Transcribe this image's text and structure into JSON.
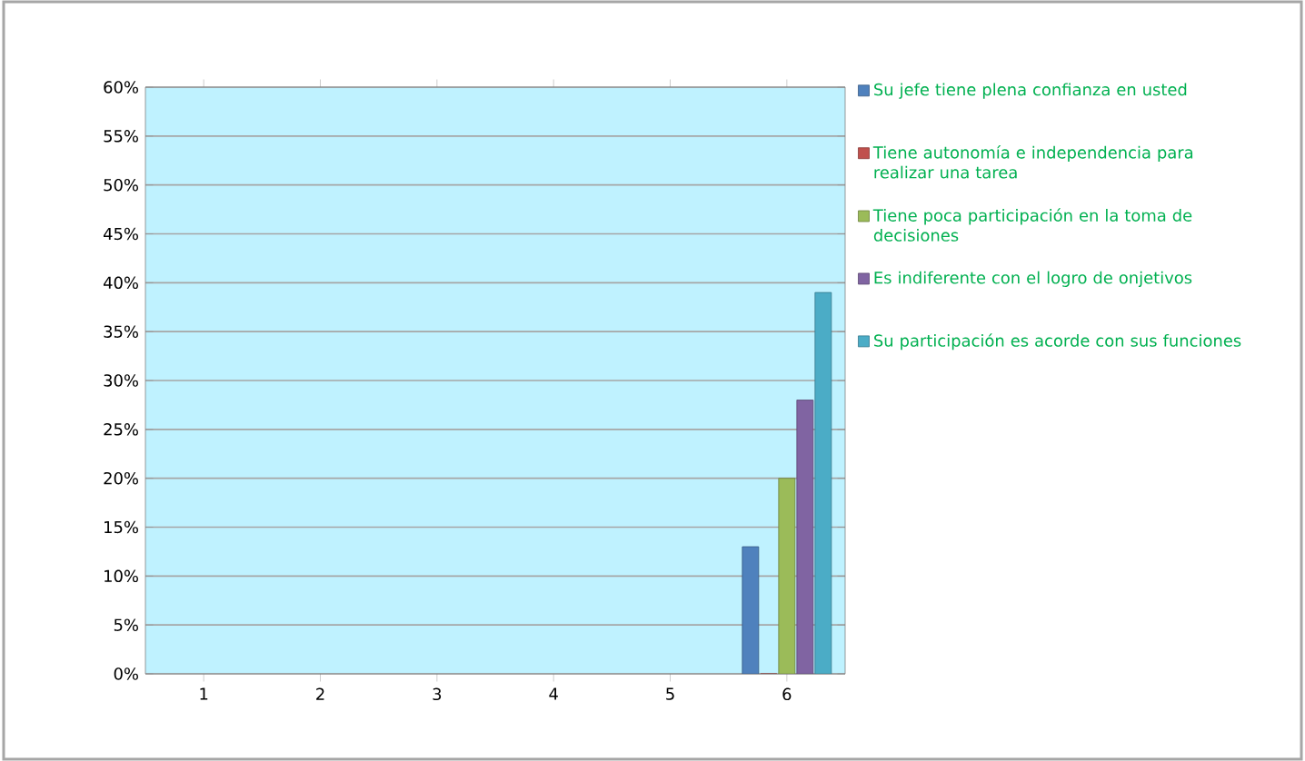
{
  "chart_data": {
    "type": "bar",
    "categories": [
      "1",
      "2",
      "3",
      "4",
      "5",
      "6"
    ],
    "series": [
      {
        "name": "Su jefe tiene plena confianza en usted",
        "color": "#4f81bd",
        "values": [
          null,
          null,
          null,
          null,
          null,
          13
        ]
      },
      {
        "name": "Tiene autonomía e independencia para realizar una tarea",
        "color": "#c0504d",
        "values": [
          null,
          null,
          null,
          null,
          null,
          0
        ]
      },
      {
        "name": "Tiene poca participación en la toma de decisiones",
        "color": "#9bbb59",
        "values": [
          null,
          null,
          null,
          null,
          null,
          20
        ]
      },
      {
        "name": "Es indiferente con el logro de onjetivos",
        "color": "#8064a2",
        "values": [
          null,
          null,
          null,
          null,
          null,
          28
        ]
      },
      {
        "name": "Su participación es acorde con sus funciones",
        "color": "#4bacc6",
        "values": [
          null,
          null,
          null,
          null,
          null,
          39
        ]
      }
    ],
    "ylim": [
      0,
      60
    ],
    "yticks": [
      {
        "value": 0,
        "label": "0%"
      },
      {
        "value": 5,
        "label": "5%"
      },
      {
        "value": 10,
        "label": "10%"
      },
      {
        "value": 15,
        "label": "15%"
      },
      {
        "value": 20,
        "label": "20%"
      },
      {
        "value": 25,
        "label": "25%"
      },
      {
        "value": 30,
        "label": "30%"
      },
      {
        "value": 35,
        "label": "35%"
      },
      {
        "value": 40,
        "label": "40%"
      },
      {
        "value": 45,
        "label": "45%"
      },
      {
        "value": 50,
        "label": "50%"
      },
      {
        "value": 55,
        "label": "55%"
      },
      {
        "value": 60,
        "label": "60%"
      }
    ],
    "grid": "y",
    "legend": "right"
  }
}
